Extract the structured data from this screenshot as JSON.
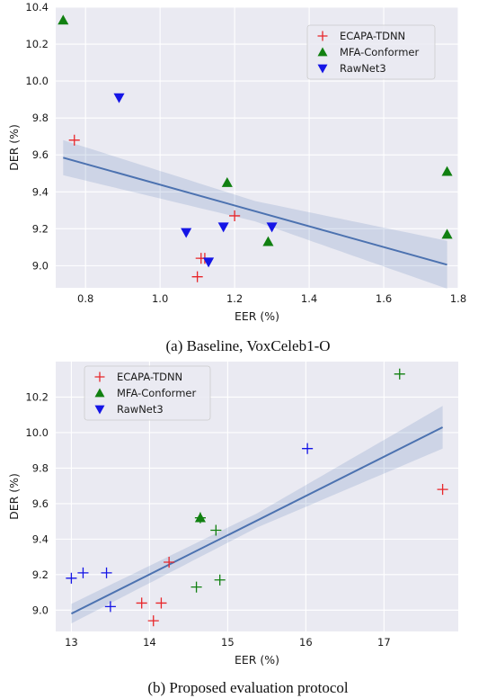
{
  "chart_data": [
    {
      "type": "scatter",
      "caption": "(a) Baseline, VoxCeleb1-O",
      "xlabel": "EER (%)",
      "ylabel": "DER (%)",
      "xlim": [
        0.72,
        1.8
      ],
      "ylim": [
        8.88,
        10.4
      ],
      "xticks": [
        0.8,
        1.0,
        1.2,
        1.4,
        1.6,
        1.8
      ],
      "yticks": [
        9.0,
        9.2,
        9.4,
        9.6,
        9.8,
        10.0,
        10.2,
        10.4
      ],
      "xtick_labels": [
        "0.8",
        "1.0",
        "1.2",
        "1.4",
        "1.6",
        "1.8"
      ],
      "ytick_labels": [
        "9.0",
        "9.2",
        "9.4",
        "9.6",
        "9.8",
        "10.0",
        "10.2",
        "10.4"
      ],
      "grid": true,
      "legend_position": "top-right",
      "series": [
        {
          "name": "ECAPA-TDNN",
          "marker": "plus",
          "color": "#e8262a",
          "points": [
            [
              0.77,
              9.68
            ],
            [
              1.1,
              8.94
            ],
            [
              1.11,
              9.04
            ],
            [
              1.12,
              9.04
            ],
            [
              1.2,
              9.27
            ]
          ]
        },
        {
          "name": "MFA-Conformer",
          "marker": "triangle-up",
          "color": "#118011",
          "points": [
            [
              0.74,
              10.33
            ],
            [
              1.18,
              9.45
            ],
            [
              1.29,
              9.13
            ],
            [
              1.77,
              9.51
            ],
            [
              1.77,
              9.17
            ]
          ]
        },
        {
          "name": "RawNet3",
          "marker": "triangle-down",
          "color": "#1515e6",
          "points": [
            [
              0.89,
              9.91
            ],
            [
              1.07,
              9.18
            ],
            [
              1.13,
              9.02
            ],
            [
              1.17,
              9.21
            ],
            [
              1.3,
              9.21
            ]
          ]
        }
      ],
      "regression": {
        "x": [
          0.74,
          1.77
        ],
        "y": [
          9.585,
          9.005
        ],
        "ci_halfwidth": [
          0.095,
          0.055,
          0.13
        ],
        "color": "#4c72b0"
      }
    },
    {
      "type": "scatter",
      "caption": "(b) Proposed evaluation protocol",
      "xlabel": "EER (%)",
      "ylabel": "DER (%)",
      "xlim": [
        12.8,
        17.95
      ],
      "ylim": [
        8.88,
        10.4
      ],
      "xticks": [
        13,
        14,
        15,
        16,
        17
      ],
      "yticks": [
        9.0,
        9.2,
        9.4,
        9.6,
        9.8,
        10.0,
        10.2
      ],
      "xtick_labels": [
        "13",
        "14",
        "15",
        "16",
        "17"
      ],
      "ytick_labels": [
        "9.0",
        "9.2",
        "9.4",
        "9.6",
        "9.8",
        "10.0",
        "10.2"
      ],
      "grid": true,
      "legend_position": "top-left",
      "series": [
        {
          "name": "ECAPA-TDNN",
          "marker": "plus",
          "color": "#e8262a",
          "points": [
            [
              13.9,
              9.04
            ],
            [
              14.05,
              8.94
            ],
            [
              14.15,
              9.04
            ],
            [
              14.25,
              9.27
            ],
            [
              17.75,
              9.68
            ]
          ]
        },
        {
          "name": "MFA-Conformer",
          "marker": "plus",
          "color": "#118011",
          "points": [
            [
              14.6,
              9.13
            ],
            [
              14.65,
              9.52
            ],
            [
              14.85,
              9.45
            ],
            [
              14.9,
              9.17
            ],
            [
              17.2,
              10.33
            ]
          ]
        },
        {
          "name": "RawNet3",
          "marker": "plus",
          "color": "#1515e6",
          "points": [
            [
              13.0,
              9.18
            ],
            [
              13.15,
              9.21
            ],
            [
              13.45,
              9.21
            ],
            [
              13.5,
              9.02
            ],
            [
              16.02,
              9.91
            ]
          ]
        }
      ],
      "extra_marks": [
        {
          "marker": "triangle-up",
          "color": "#118011",
          "x": 14.65,
          "y": 9.52
        }
      ],
      "legend_markers": [
        "plus",
        "triangle-up",
        "triangle-down"
      ],
      "regression": {
        "x": [
          13.0,
          17.75
        ],
        "y": [
          8.98,
          10.03
        ],
        "ci_halfwidth": [
          0.055,
          0.04,
          0.12
        ],
        "color": "#4c72b0"
      }
    }
  ]
}
